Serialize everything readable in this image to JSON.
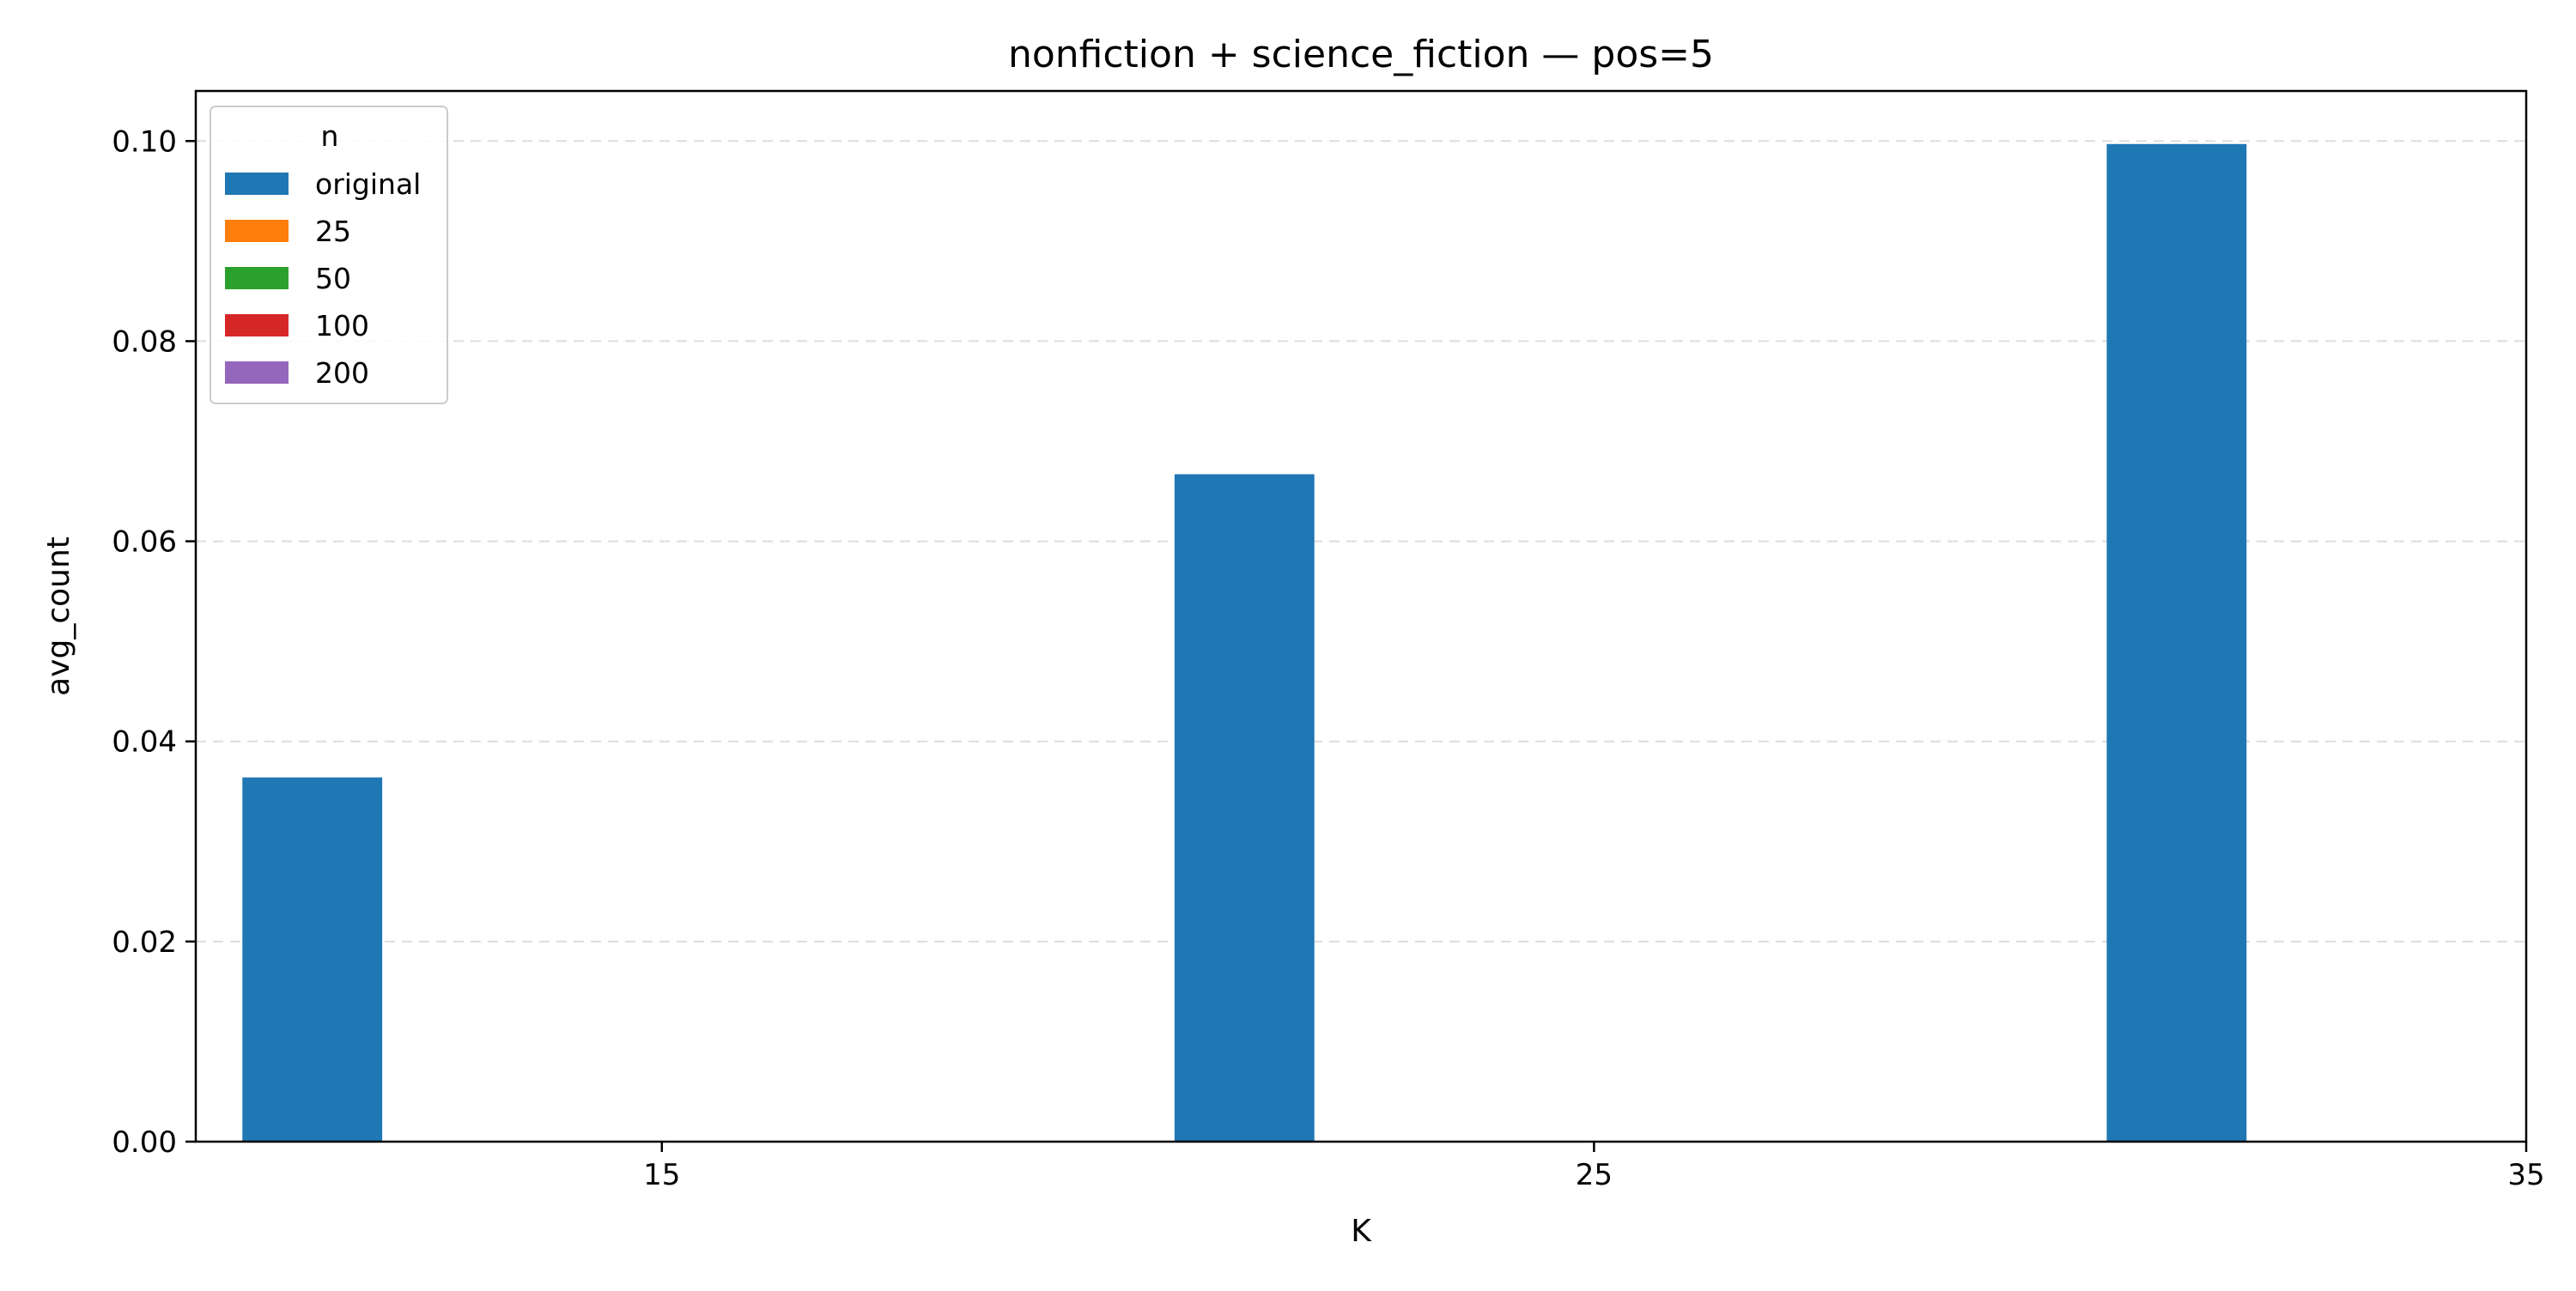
{
  "chart_data": {
    "type": "bar",
    "title": "nonfiction + science_fiction — pos=5",
    "xlabel": "K",
    "ylabel": "avg_count",
    "categories": [
      15,
      25,
      35
    ],
    "x_ticks": [
      "15",
      "25",
      "35"
    ],
    "y_ticks": [
      "0.00",
      "0.02",
      "0.04",
      "0.06",
      "0.08",
      "0.10"
    ],
    "ylim": [
      0,
      0.105
    ],
    "grid": "horizontal dashed",
    "legend": {
      "title": "n",
      "placement": "upper-left"
    },
    "series": [
      {
        "name": "original",
        "color": "#1f77b4",
        "values": [
          0.0364,
          0.0667,
          0.0997
        ]
      },
      {
        "name": "25",
        "color": "#ff7f0e",
        "values": [
          0,
          0,
          0
        ]
      },
      {
        "name": "50",
        "color": "#2ca02c",
        "values": [
          0,
          0,
          0
        ]
      },
      {
        "name": "100",
        "color": "#d62728",
        "values": [
          0,
          0,
          0
        ]
      },
      {
        "name": "200",
        "color": "#9467bd",
        "values": [
          0,
          0,
          0
        ]
      }
    ]
  }
}
